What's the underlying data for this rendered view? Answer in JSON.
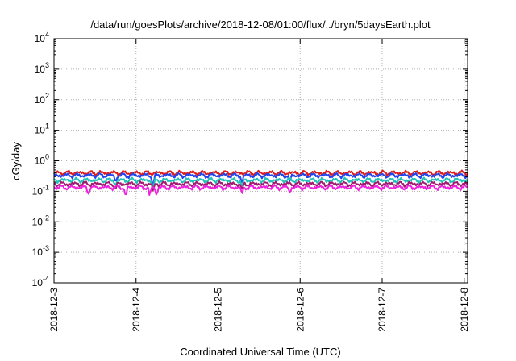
{
  "chart_data": {
    "type": "line",
    "title": "/data/run/goesPlots/archive/2018-12-08/01:00/flux/../bryn/5daysEarth.plot",
    "xlabel": "Coordinated Universal Time (UTC)",
    "ylabel": "cGy/day",
    "y_scale": "log",
    "ylim": [
      0.0001,
      10000
    ],
    "y_ticks": [
      {
        "base": "10",
        "exp": "-4",
        "value": 0.0001
      },
      {
        "base": "10",
        "exp": "-3",
        "value": 0.001
      },
      {
        "base": "10",
        "exp": "-2",
        "value": 0.01
      },
      {
        "base": "10",
        "exp": "-1",
        "value": 0.1
      },
      {
        "base": "10",
        "exp": "0",
        "value": 1
      },
      {
        "base": "10",
        "exp": "1",
        "value": 10
      },
      {
        "base": "10",
        "exp": "2",
        "value": 100
      },
      {
        "base": "10",
        "exp": "3",
        "value": 1000
      },
      {
        "base": "10",
        "exp": "4",
        "value": 10000
      }
    ],
    "x_ticks": [
      "2018-12-3",
      "2018-12-4",
      "2018-12-5",
      "2018-12-6",
      "2018-12-7",
      "2018-12-8"
    ],
    "xlim": [
      "2018-12-03",
      "2018-12-08T01:00"
    ],
    "grid": true,
    "series": [
      {
        "color": "#dd1c1c",
        "level": 0.4,
        "dips": []
      },
      {
        "color": "#2244ee",
        "level": 0.33,
        "dips": [
          [
            "2018-12-03T18:00",
            0.2
          ],
          [
            "2018-12-04T05:00",
            0.14
          ],
          [
            "2018-12-05T07:00",
            0.18
          ],
          [
            "2018-12-05T21:00",
            0.2
          ]
        ]
      },
      {
        "color": "#22c2b8",
        "level": 0.23,
        "dips": [
          [
            "2018-12-03T18:00",
            0.16
          ],
          [
            "2018-12-04T05:00",
            0.12
          ],
          [
            "2018-12-05T07:00",
            0.14
          ]
        ]
      },
      {
        "color": "#a01a6e",
        "level": 0.175,
        "dips": [
          [
            "2018-12-03T18:00",
            0.12
          ],
          [
            "2018-12-04T05:00",
            0.1
          ],
          [
            "2018-12-05T07:00",
            0.11
          ]
        ]
      },
      {
        "color": "#ee22dd",
        "level": 0.135,
        "dips": [
          [
            "2018-12-03T10:00",
            0.08
          ],
          [
            "2018-12-03T21:00",
            0.065
          ],
          [
            "2018-12-04T04:00",
            0.07
          ],
          [
            "2018-12-04T06:00",
            0.075
          ],
          [
            "2018-12-05T07:00",
            0.08
          ],
          [
            "2018-12-05T21:00",
            0.09
          ]
        ]
      }
    ]
  }
}
